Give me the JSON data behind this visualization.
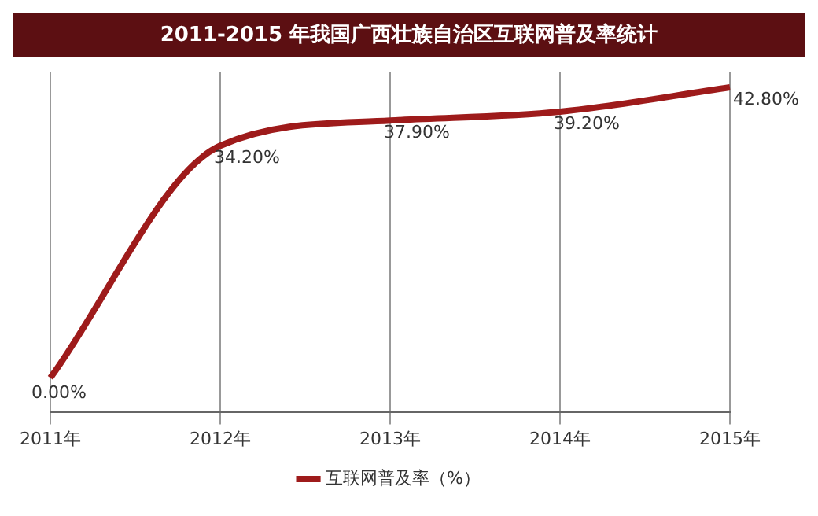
{
  "chart_data": {
    "type": "line",
    "title": "2011-2015 年我国广西壮族自治区互联网普及率统计",
    "categories": [
      "2011年",
      "2012年",
      "2013年",
      "2014年",
      "2015年"
    ],
    "series": [
      {
        "name": "互联网普及率（%）",
        "color": "#9e1b1b",
        "values": [
          0,
          34.2,
          37.9,
          39.2,
          42.8
        ],
        "value_labels": [
          "0.00%",
          "34.20%",
          "37.90%",
          "39.20%",
          "42.80%"
        ]
      }
    ],
    "grid": "x",
    "legend": "bottom",
    "marker": "none",
    "line_style": "solid"
  }
}
